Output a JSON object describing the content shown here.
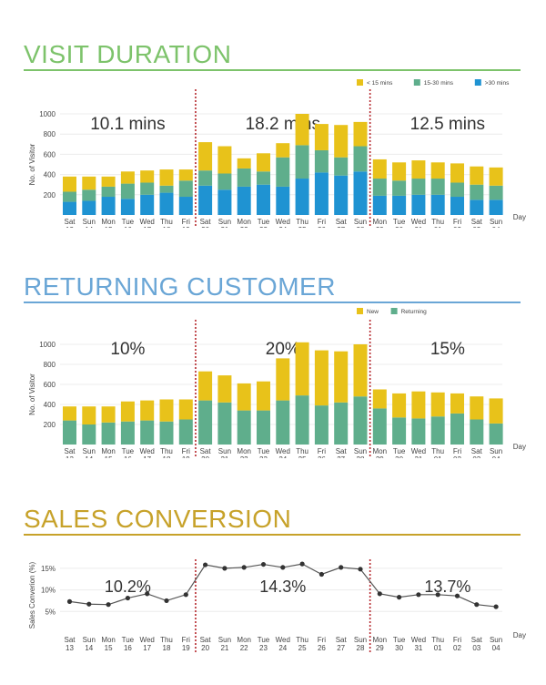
{
  "colors": {
    "visit_accent": "#7dc36b",
    "returning_accent": "#6aa6d6",
    "sales_accent": "#c7a22a",
    "yellow": "#e8c21a",
    "teal": "#5fae8c",
    "blue": "#1f93d2",
    "divider": "#b5282e",
    "line": "#555555"
  },
  "sections": {
    "visit": {
      "title": "VISIT DURATION"
    },
    "returning": {
      "title": "RETURNING CUSTOMER"
    },
    "sales": {
      "title": "SALES CONVERSION"
    }
  },
  "chart_data": [
    {
      "type": "bar",
      "stacked": true,
      "ylabel": "No. of Visitor",
      "xlabel": "Day",
      "ylim": [
        0,
        1000
      ],
      "yticks": [
        "200",
        "400",
        "600",
        "800",
        "1000"
      ],
      "categories": [
        "Sat 13",
        "Sun 14",
        "Mon 15",
        "Tue 16",
        "Wed 17",
        "Thu 18",
        "Fri 19",
        "Sat 20",
        "Sun 21",
        "Mon 22",
        "Tue 23",
        "Wed 24",
        "Thu 25",
        "Fri 26",
        "Sat 27",
        "Sun 28",
        "Mon 29",
        "Tue 30",
        "Wed 31",
        "Thu 01",
        "Fri 02",
        "Sat 03",
        "Sun 04"
      ],
      "series": [
        {
          "name": ">30 mins",
          "color": "#1f93d2",
          "values": [
            130,
            140,
            180,
            160,
            200,
            220,
            180,
            290,
            250,
            280,
            300,
            280,
            360,
            420,
            390,
            430,
            190,
            190,
            200,
            200,
            180,
            150,
            150
          ]
        },
        {
          "name": "15-30 mins",
          "color": "#5fae8c",
          "values": [
            100,
            110,
            100,
            150,
            120,
            70,
            160,
            150,
            160,
            180,
            130,
            290,
            330,
            220,
            180,
            250,
            170,
            150,
            160,
            160,
            140,
            150,
            140
          ]
        },
        {
          "name": "< 15 mins",
          "color": "#e8c21a",
          "values": [
            150,
            130,
            100,
            120,
            120,
            160,
            110,
            280,
            270,
            100,
            180,
            140,
            310,
            260,
            320,
            240,
            190,
            180,
            180,
            160,
            190,
            180,
            180
          ]
        }
      ],
      "legend": "top-right",
      "legend_order": [
        "< 15 mins",
        "15-30 mins",
        ">30 mins"
      ],
      "annotations": [
        "10.1 mins",
        "18.2 mins",
        "12.5 mins"
      ]
    },
    {
      "type": "bar",
      "stacked": true,
      "ylabel": "No. of Visitor",
      "xlabel": "Day",
      "ylim": [
        0,
        1000
      ],
      "yticks": [
        "200",
        "400",
        "600",
        "800",
        "1000"
      ],
      "categories": [
        "Sat 13",
        "Sun 14",
        "Mon 15",
        "Tue 16",
        "Wed 17",
        "Thu 18",
        "Fri 19",
        "Sat 20",
        "Sun 21",
        "Mon 22",
        "Tue 23",
        "Wed 24",
        "Thu 25",
        "Fri 26",
        "Sat 27",
        "Sun 28",
        "Mon 29",
        "Tue 30",
        "Wed 31",
        "Thu 01",
        "Fri 02",
        "Sat 03",
        "Sun 04"
      ],
      "series": [
        {
          "name": "Returning",
          "color": "#5fae8c",
          "values": [
            240,
            200,
            220,
            230,
            240,
            230,
            250,
            440,
            420,
            340,
            340,
            440,
            490,
            390,
            420,
            480,
            360,
            270,
            260,
            280,
            310,
            250,
            210
          ]
        },
        {
          "name": "New",
          "color": "#e8c21a",
          "values": [
            140,
            180,
            160,
            200,
            200,
            220,
            200,
            290,
            270,
            270,
            290,
            420,
            530,
            550,
            510,
            520,
            190,
            240,
            270,
            240,
            200,
            230,
            250
          ]
        }
      ],
      "legend": "top-right",
      "legend_order": [
        "New",
        "Returning"
      ],
      "annotations": [
        "10%",
        "20%",
        "15%"
      ]
    },
    {
      "type": "line",
      "ylabel": "Sales Converion (%)",
      "xlabel": "Day",
      "ylim": [
        0,
        17.5
      ],
      "yticks": [
        "5%",
        "10%",
        "15%"
      ],
      "categories": [
        "Sat 13",
        "Sun 14",
        "Mon 15",
        "Tue 16",
        "Wed 17",
        "Thu 18",
        "Fri 19",
        "Sat 20",
        "Sun 21",
        "Mon 22",
        "Tue 23",
        "Wed 24",
        "Thu 25",
        "Fri 26",
        "Sat 27",
        "Sun 28",
        "Mon 29",
        "Tue 30",
        "Wed 31",
        "Thu 01",
        "Fri 02",
        "Sat 03",
        "Sun 04"
      ],
      "series": [
        {
          "name": "",
          "color": "#555555",
          "values": [
            7.3,
            6.7,
            6.6,
            8.1,
            9.1,
            7.5,
            8.9,
            15.8,
            15.0,
            15.2,
            15.9,
            15.2,
            16.0,
            13.6,
            15.2,
            14.8,
            9.1,
            8.3,
            8.9,
            8.9,
            8.6,
            6.6,
            6.1
          ]
        }
      ],
      "annotations": [
        "10.2%",
        "14.3%",
        "13.7%"
      ]
    }
  ]
}
